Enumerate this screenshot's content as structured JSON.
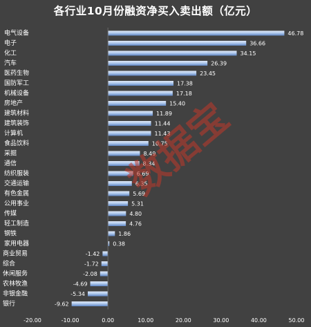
{
  "chart_data": {
    "type": "bar",
    "orientation": "horizontal",
    "title": "各行业10月份融资净买入卖出额（亿元）",
    "categories": [
      "电气设备",
      "电子",
      "化工",
      "汽车",
      "医药生物",
      "国防军工",
      "机械设备",
      "房地产",
      "建筑材料",
      "建筑装饰",
      "计算机",
      "食品饮料",
      "采掘",
      "通信",
      "纺织服装",
      "交通运输",
      "有色金属",
      "公用事业",
      "传媒",
      "轻工制造",
      "钢铁",
      "家用电器",
      "商业贸易",
      "综合",
      "休闲服务",
      "农林牧渔",
      "非银金融",
      "银行"
    ],
    "values": [
      46.78,
      36.66,
      34.15,
      26.39,
      23.45,
      17.38,
      17.18,
      15.4,
      11.89,
      11.44,
      11.43,
      10.75,
      8.49,
      8.34,
      6.69,
      6.35,
      5.69,
      5.31,
      4.8,
      4.76,
      1.86,
      0.38,
      -1.42,
      -1.72,
      -2.08,
      -4.69,
      -5.34,
      -9.62
    ],
    "value_labels": [
      "46.78",
      "36.66",
      "34.15",
      "26.39",
      "23.45",
      "17.38",
      "17.18",
      "15.40",
      "11.89",
      "11.44",
      "11.43",
      "10.75",
      "8.49",
      "8.34",
      "6.69",
      "6.35",
      "5.69",
      "5.31",
      "4.80",
      "4.76",
      "1.86",
      "0.38",
      "-1.42",
      "-1.72",
      "-2.08",
      "-4.69",
      "-5.34",
      "-9.62"
    ],
    "xlim": [
      -20,
      50
    ],
    "x_ticks": [
      "-20.00",
      "-10.00",
      "0.00",
      "10.00",
      "20.00",
      "30.00",
      "40.00",
      "50.00"
    ],
    "grid": false,
    "legend": "none",
    "bar_color": "#8fb2e0",
    "bar_highlight": "#dfe9f7",
    "background": "#414141"
  },
  "watermark": "数据宝"
}
